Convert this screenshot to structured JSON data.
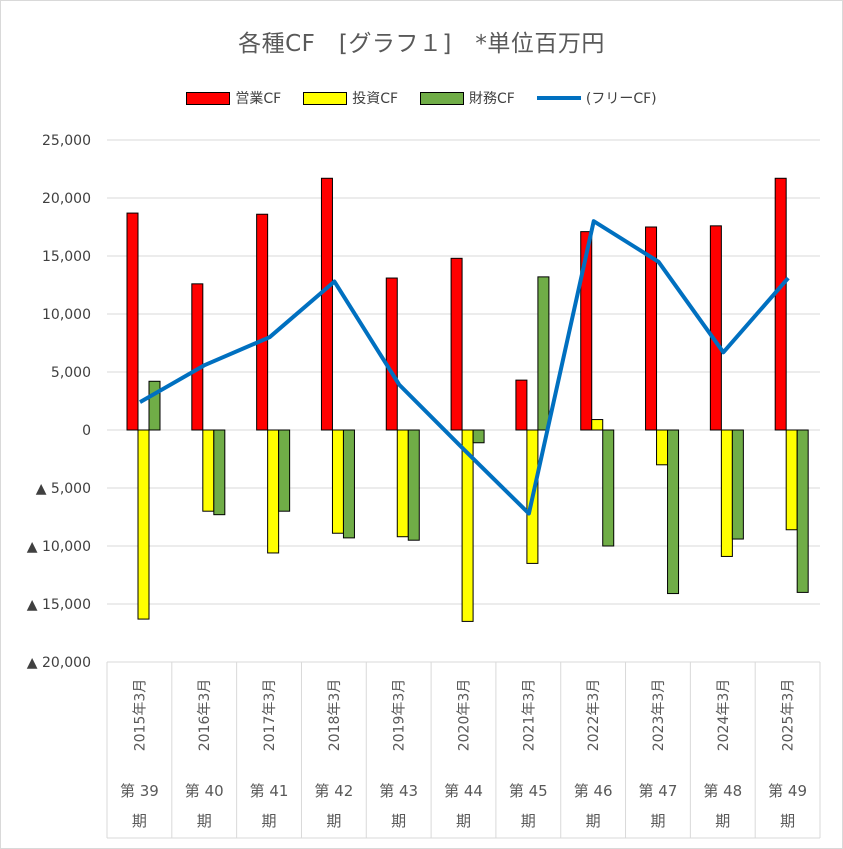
{
  "title": "各種CF　[グラフ１]　*単位百万円",
  "legend": [
    {
      "label": "営業CF",
      "color": "#ff0000",
      "kind": "bar"
    },
    {
      "label": "投資CF",
      "color": "#ffff00",
      "kind": "bar"
    },
    {
      "label": "財務CF",
      "color": "#70ad47",
      "kind": "bar"
    },
    {
      "label": "(フリーCF)",
      "color": "#0070c0",
      "kind": "line"
    }
  ],
  "chart_data": {
    "type": "bar",
    "title": "各種CF　[グラフ１]　*単位百万円",
    "categories": [
      "2015年3月",
      "2016年3月",
      "2017年3月",
      "2018年3月",
      "2019年3月",
      "2020年3月",
      "2021年3月",
      "2022年3月",
      "2023年3月",
      "2024年3月",
      "2025年3月"
    ],
    "periods": [
      "第 39",
      "第 40",
      "第 41",
      "第 42",
      "第 43",
      "第 44",
      "第 45",
      "第 46",
      "第 47",
      "第 48",
      "第 49"
    ],
    "period_suffix": "期",
    "ylim": [
      -20000,
      25000
    ],
    "yticks": [
      {
        "value": 25000,
        "label": "25,000"
      },
      {
        "value": 20000,
        "label": "20,000"
      },
      {
        "value": 15000,
        "label": "15,000"
      },
      {
        "value": 10000,
        "label": "10,000"
      },
      {
        "value": 5000,
        "label": "5,000"
      },
      {
        "value": 0,
        "label": "0"
      },
      {
        "value": -5000,
        "label": "▲ 5,000"
      },
      {
        "value": -10000,
        "label": "▲ 10,000"
      },
      {
        "value": -15000,
        "label": "▲ 15,000"
      },
      {
        "value": -20000,
        "label": "▲ 20,000"
      }
    ],
    "grid": true,
    "legend_position": "top",
    "series": [
      {
        "name": "営業CF",
        "type": "bar",
        "color": "#ff0000",
        "values": [
          18700,
          12600,
          18600,
          21700,
          13100,
          14800,
          4300,
          17100,
          17500,
          17600,
          21700
        ]
      },
      {
        "name": "投資CF",
        "type": "bar",
        "color": "#ffff00",
        "values": [
          -16300,
          -7000,
          -10600,
          -8900,
          -9200,
          -16500,
          -11500,
          900,
          -3000,
          -10900,
          -8600
        ]
      },
      {
        "name": "財務CF",
        "type": "bar",
        "color": "#70ad47",
        "values": [
          4200,
          -7300,
          -7000,
          -9300,
          -9500,
          -1100,
          13200,
          -10000,
          -14100,
          -9400,
          -14000
        ]
      },
      {
        "name": "(フリーCF)",
        "type": "line",
        "color": "#0070c0",
        "values": [
          2400,
          5600,
          8000,
          12800,
          3900,
          -1700,
          -7200,
          18000,
          14500,
          6700,
          13100
        ]
      }
    ]
  }
}
